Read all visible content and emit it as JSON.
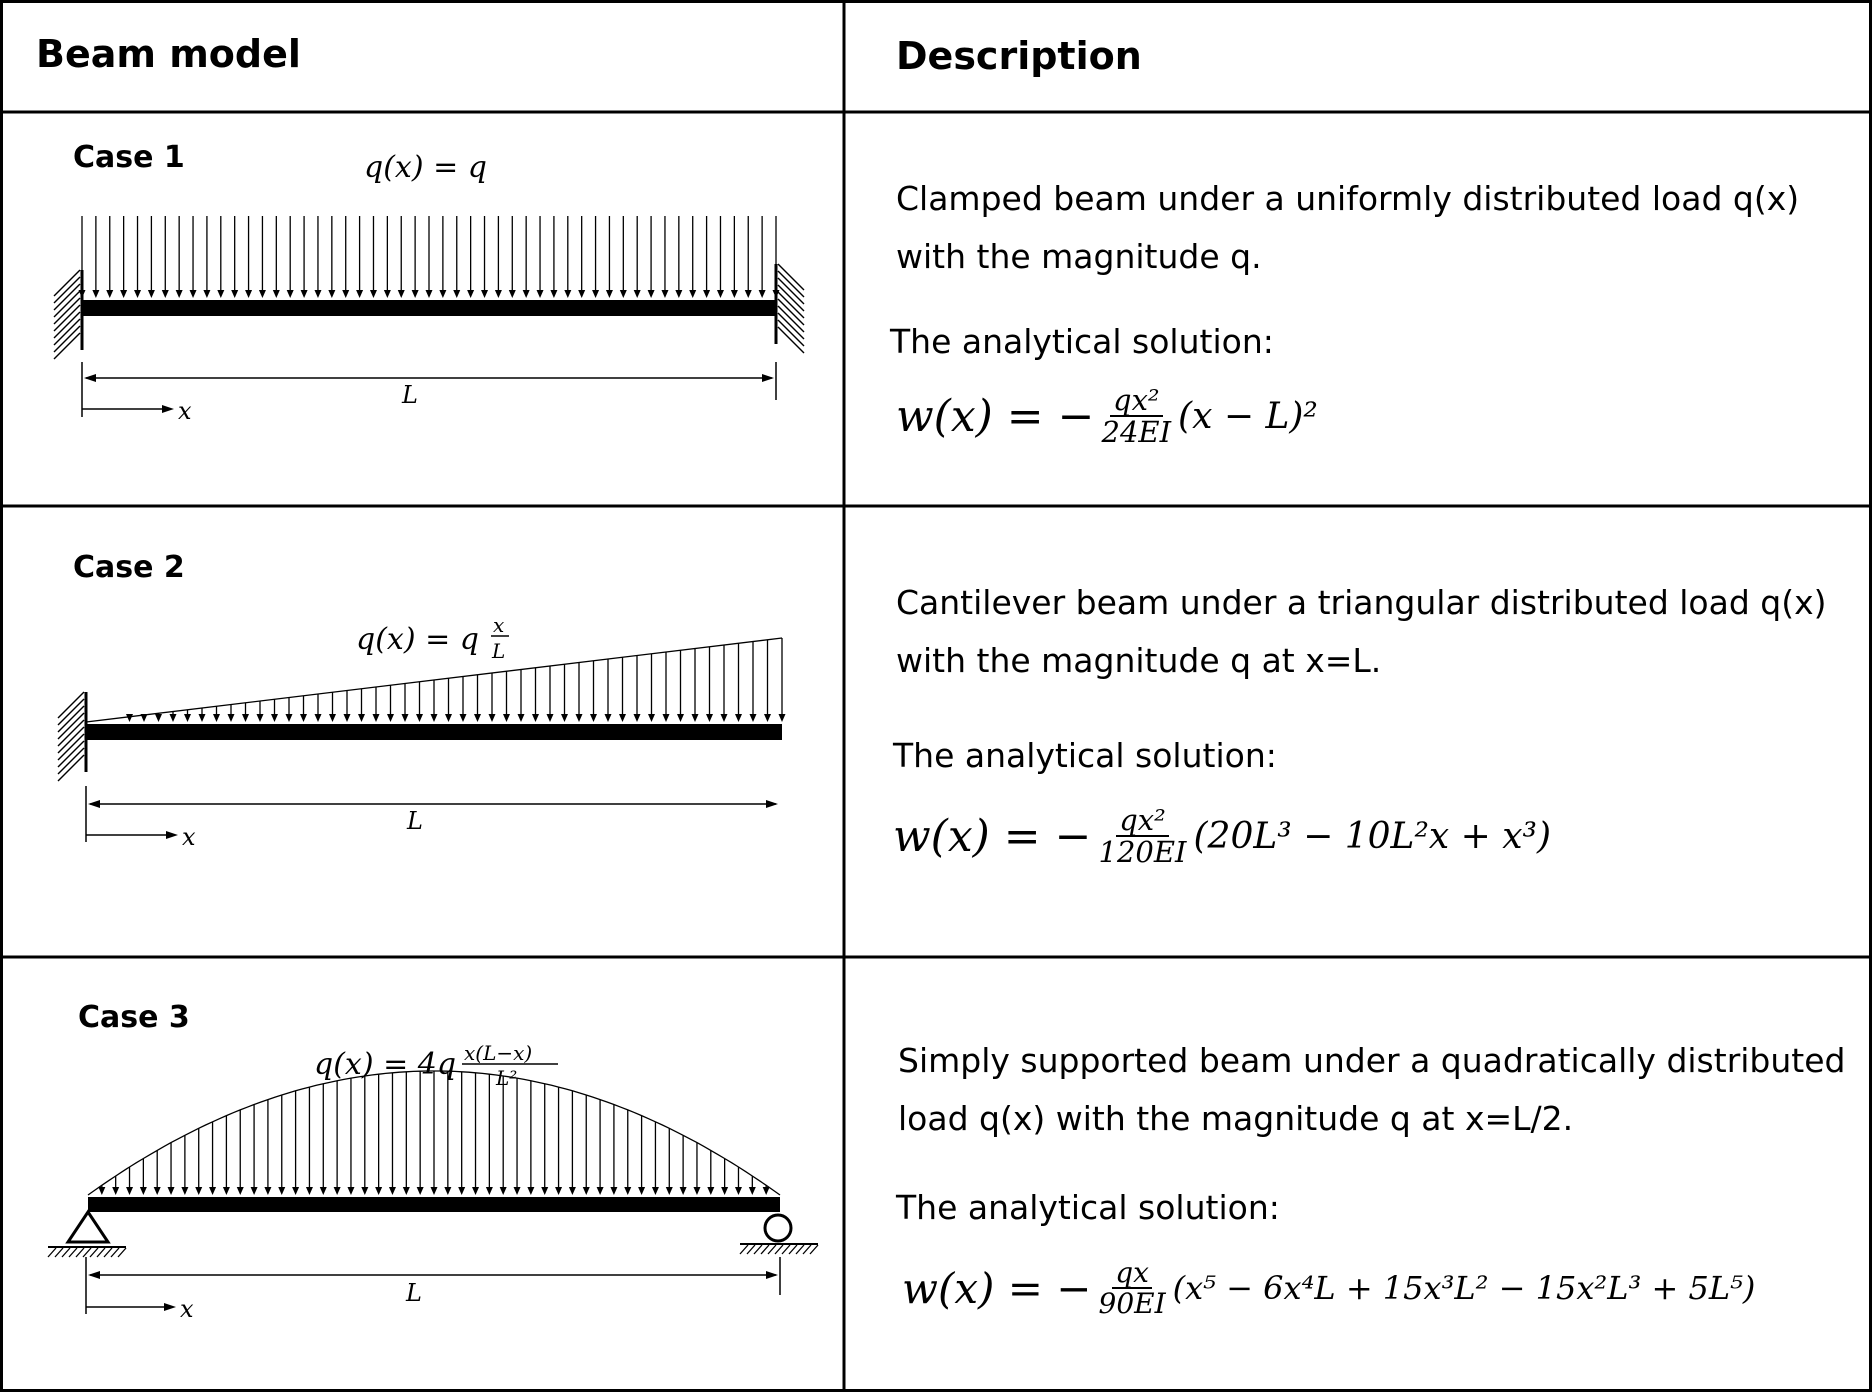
{
  "header": {
    "col1": "Beam model",
    "col2": "Description"
  },
  "cases": [
    {
      "label": "Case 1",
      "load_label": "q(x) = q",
      "span_label": "L",
      "axis_label": "x",
      "support": "clamped-clamped",
      "load_shape": "uniform",
      "desc_line1": "Clamped beam under a uniformly distributed load q(x)",
      "desc_line2": "with the magnitude q.",
      "solution_label": "The analytical solution:",
      "formula": {
        "lhs": "w(x) = −",
        "num": "qx²",
        "den": "24EI",
        "rest": "(x − L)²"
      }
    },
    {
      "label": "Case 2",
      "load_label": "q(x) = q x/L",
      "span_label": "L",
      "axis_label": "x",
      "support": "cantilever",
      "load_shape": "triangular",
      "desc_line1": "Cantilever beam under a triangular distributed load q(x)",
      "desc_line2": "with the magnitude q at x=L.",
      "solution_label": "The analytical solution:",
      "formula": {
        "lhs": "w(x) = −",
        "num": "qx²",
        "den": "120EI",
        "rest": "(20L³ − 10L²x + x³)"
      }
    },
    {
      "label": "Case 3",
      "load_label": "q(x) = 4q x(L−x)/L²",
      "span_label": "L",
      "axis_label": "x",
      "support": "simply-supported",
      "load_shape": "quadratic",
      "desc_line1": "Simply supported beam under a quadratically distributed",
      "desc_line2": "load q(x) with the magnitude q at x=L/2.",
      "solution_label": "The analytical solution:",
      "formula": {
        "lhs": "w(x) = −",
        "num": "qx",
        "den": "90EI",
        "rest": "(x⁵ − 6x⁴L + 15x³L² − 15x²L³ + 5L⁵)"
      }
    }
  ]
}
